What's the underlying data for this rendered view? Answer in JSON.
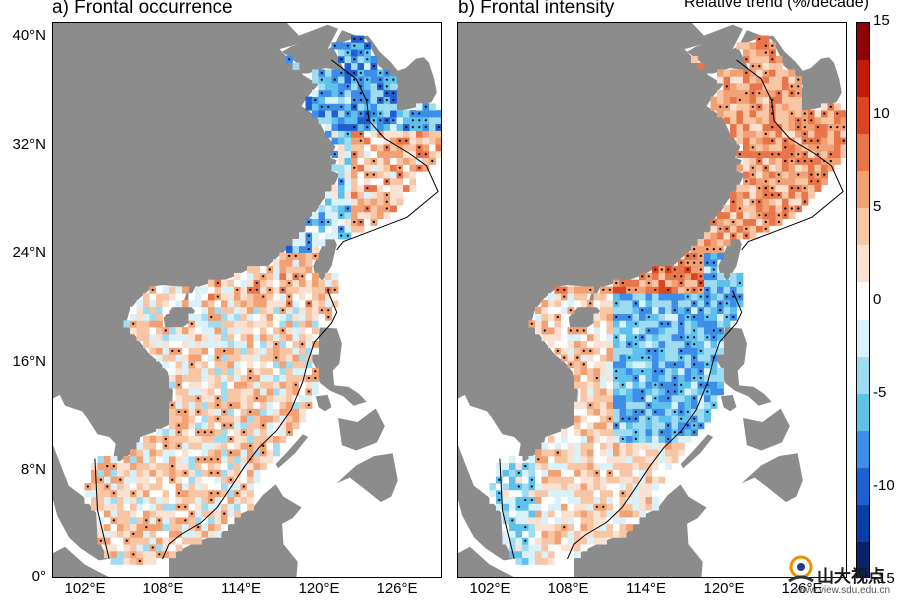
{
  "panels": [
    {
      "title": "a) Frontal occurrence"
    },
    {
      "title": "b) Frontal intensity"
    }
  ],
  "lat_ticks": [
    "40°N",
    "32°N",
    "24°N",
    "16°N",
    "8°N",
    "0°"
  ],
  "lon_ticks": [
    "102°E",
    "108°E",
    "114°E",
    "120°E",
    "126°E"
  ],
  "lon_ticks_b": [
    "102°E",
    "108°E",
    "114°E",
    "120°E",
    "126°E"
  ],
  "extent": {
    "lon_min": 100,
    "lon_max": 130,
    "lat_min": 0,
    "lat_max": 41
  },
  "colorbar": {
    "title": "Relative trend (%/decade)",
    "labels": [
      "15",
      "10",
      "5",
      "0",
      "-5",
      "-10",
      "-15"
    ],
    "range": [
      -15,
      15
    ]
  },
  "colors": {
    "land": "#8c8c8c",
    "sea_bg": "#ffffff"
  },
  "watermark": {
    "text": "山大视点",
    "url": "www.view.sdu.edu.cn"
  }
}
